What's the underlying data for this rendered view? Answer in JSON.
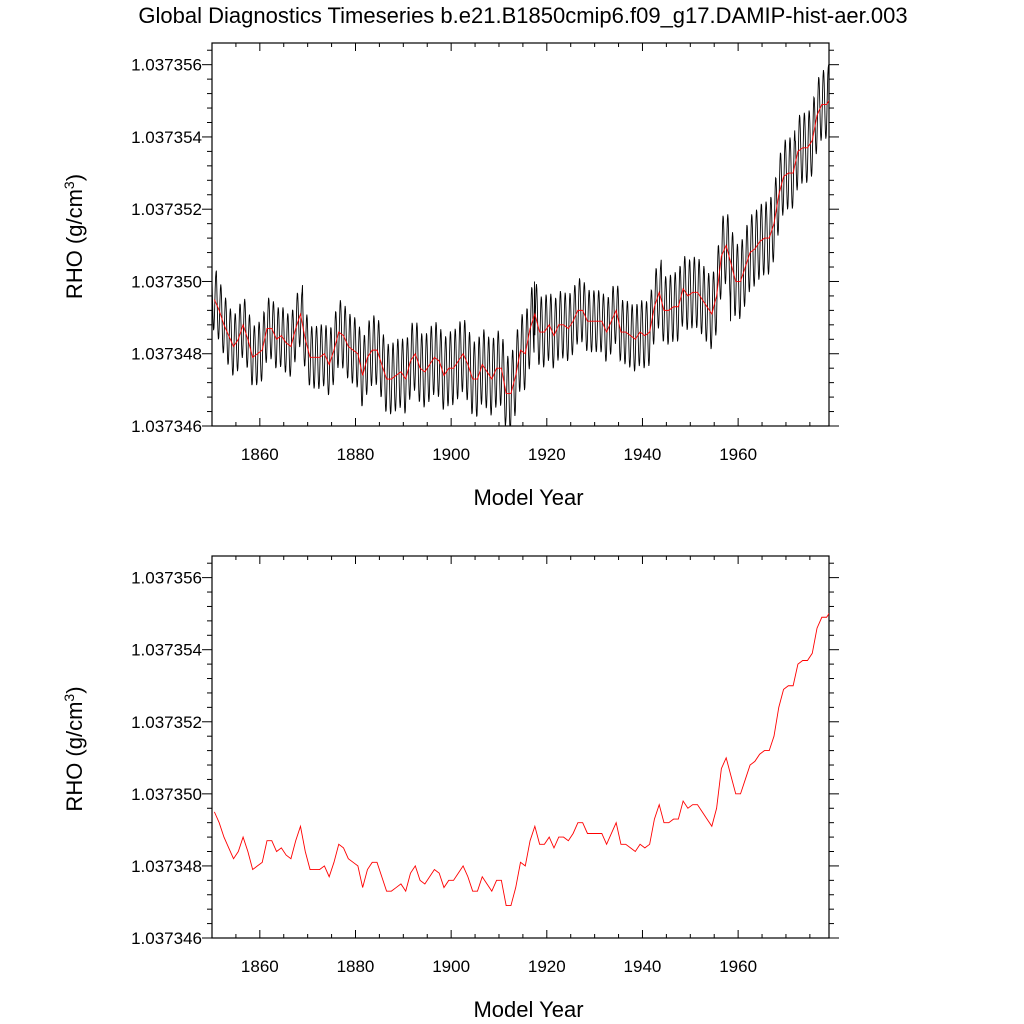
{
  "title": "Global Diagnostics Timeseries b.e21.B1850cmip6.f09_g17.DAMIP-hist-aer.003",
  "chart_data": [
    {
      "type": "line",
      "xlabel": "Model Year",
      "ylabel": "RHO (g/cm",
      "ylabel_sup": "3",
      "ylabel_close": ")",
      "xlim": [
        1850,
        1979
      ],
      "ylim": [
        1.037346,
        1.0373566
      ],
      "xticks": [
        1860,
        1880,
        1900,
        1920,
        1940,
        1960
      ],
      "yticks": [
        "1.037346",
        "1.037348",
        "1.037350",
        "1.037352",
        "1.037354",
        "1.037356"
      ],
      "series": [
        {
          "kind": "monthly",
          "color": "#000000",
          "amplitude": [
            [
              1850,
              9e-07
            ],
            [
              1870,
              9e-07
            ],
            [
              1880,
              1e-06
            ],
            [
              1905,
              1.1e-06
            ],
            [
              1914,
              1.1e-06
            ],
            [
              1930,
              9e-07
            ],
            [
              1945,
              1e-06
            ],
            [
              1960,
              1.1e-06
            ],
            [
              1979,
              1e-06
            ]
          ],
          "peaks": [
            [
              1850.9,
              1.0373503
            ],
            [
              1868.9,
              1.0373499
            ],
            [
              1917.4,
              1.03735
            ],
            [
              1943.9,
              1.0373506
            ],
            [
              1964.9,
              1.0373521
            ],
            [
              1971.9,
              1.0373539
            ],
            [
              1978.9,
              1.037356
            ]
          ],
          "troughs": [
            [
              1911.4,
              1.0373461
            ],
            [
              1912.4,
              1.0373459
            ],
            [
              1905.4,
              1.0373463
            ],
            [
              1958.4,
              1.0373489
            ]
          ]
        },
        {
          "kind": "annual",
          "color": "#ff0000",
          "x": [
            1850,
            1851,
            1852,
            1853,
            1854,
            1855,
            1856,
            1857,
            1858,
            1859,
            1860,
            1861,
            1862,
            1863,
            1864,
            1865,
            1866,
            1867,
            1868,
            1869,
            1870,
            1871,
            1872,
            1873,
            1874,
            1875,
            1876,
            1877,
            1878,
            1879,
            1880,
            1881,
            1882,
            1883,
            1884,
            1885,
            1886,
            1887,
            1888,
            1889,
            1890,
            1891,
            1892,
            1893,
            1894,
            1895,
            1896,
            1897,
            1898,
            1899,
            1900,
            1901,
            1902,
            1903,
            1904,
            1905,
            1906,
            1907,
            1908,
            1909,
            1910,
            1911,
            1912,
            1913,
            1914,
            1915,
            1916,
            1917,
            1918,
            1919,
            1920,
            1921,
            1922,
            1923,
            1924,
            1925,
            1926,
            1927,
            1928,
            1929,
            1930,
            1931,
            1932,
            1933,
            1934,
            1935,
            1936,
            1937,
            1938,
            1939,
            1940,
            1941,
            1942,
            1943,
            1944,
            1945,
            1946,
            1947,
            1948,
            1949,
            1950,
            1951,
            1952,
            1953,
            1954,
            1955,
            1956,
            1957,
            1958,
            1959,
            1960,
            1961,
            1962,
            1963,
            1964,
            1965,
            1966,
            1967,
            1968,
            1969,
            1970,
            1971,
            1972,
            1973,
            1974,
            1975,
            1976,
            1977,
            1978,
            1979
          ],
          "values": [
            1.0373495,
            1.0373492,
            1.0373488,
            1.0373485,
            1.0373482,
            1.0373484,
            1.0373488,
            1.0373484,
            1.0373479,
            1.037348,
            1.0373481,
            1.0373487,
            1.0373487,
            1.0373484,
            1.0373485,
            1.0373483,
            1.0373482,
            1.0373487,
            1.0373491,
            1.0373484,
            1.0373479,
            1.0373479,
            1.0373479,
            1.037348,
            1.0373477,
            1.0373481,
            1.0373486,
            1.0373485,
            1.0373482,
            1.0373481,
            1.037348,
            1.0373474,
            1.0373479,
            1.0373481,
            1.0373481,
            1.0373477,
            1.0373473,
            1.0373473,
            1.0373474,
            1.0373475,
            1.0373473,
            1.0373478,
            1.037348,
            1.0373476,
            1.0373475,
            1.0373477,
            1.0373479,
            1.0373478,
            1.0373474,
            1.0373476,
            1.0373476,
            1.0373478,
            1.037348,
            1.0373477,
            1.0373473,
            1.0373473,
            1.0373477,
            1.0373475,
            1.0373473,
            1.0373476,
            1.0373476,
            1.0373469,
            1.0373469,
            1.0373474,
            1.0373481,
            1.037348,
            1.0373487,
            1.0373491,
            1.0373486,
            1.0373486,
            1.0373488,
            1.0373485,
            1.0373488,
            1.0373488,
            1.0373487,
            1.0373489,
            1.0373492,
            1.0373492,
            1.0373489,
            1.0373489,
            1.0373489,
            1.0373489,
            1.0373486,
            1.0373489,
            1.0373492,
            1.0373486,
            1.0373486,
            1.0373485,
            1.0373484,
            1.0373486,
            1.0373485,
            1.0373486,
            1.0373493,
            1.0373497,
            1.0373492,
            1.0373492,
            1.0373493,
            1.0373493,
            1.0373498,
            1.0373496,
            1.0373497,
            1.0373497,
            1.0373495,
            1.0373493,
            1.0373491,
            1.0373496,
            1.0373507,
            1.037351,
            1.0373505,
            1.03735,
            1.03735,
            1.0373504,
            1.0373508,
            1.0373509,
            1.0373511,
            1.0373512,
            1.0373512,
            1.0373516,
            1.0373524,
            1.0373529,
            1.037353,
            1.037353,
            1.0373536,
            1.0373537,
            1.0373537,
            1.0373539,
            1.0373546,
            1.0373549,
            1.0373549,
            1.0373551
          ]
        }
      ]
    },
    {
      "type": "line",
      "xlabel": "Model Year",
      "ylabel": "RHO (g/cm",
      "ylabel_sup": "3",
      "ylabel_close": ")",
      "xlim": [
        1850,
        1979
      ],
      "ylim": [
        1.037346,
        1.0373566
      ],
      "xticks": [
        1860,
        1880,
        1900,
        1920,
        1940,
        1960
      ],
      "yticks": [
        "1.037346",
        "1.037348",
        "1.037350",
        "1.037352",
        "1.037354",
        "1.037356"
      ],
      "series": [
        {
          "kind": "annual",
          "color": "#ff0000",
          "ref": "same-as-panel-1-annual"
        }
      ]
    }
  ]
}
